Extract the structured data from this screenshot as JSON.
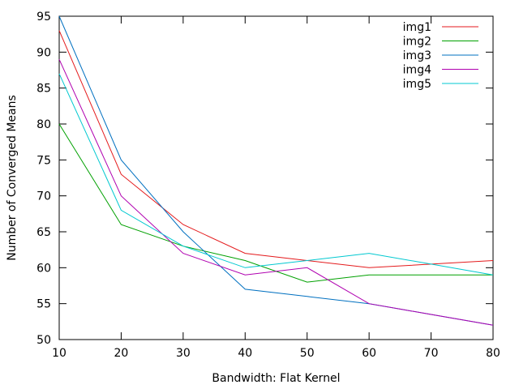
{
  "chart_data": {
    "type": "line",
    "title": "",
    "xlabel": "Bandwidth: Flat Kernel",
    "ylabel": "Number of Converged Means",
    "xlim": [
      10,
      80
    ],
    "ylim": [
      50,
      95
    ],
    "xticks": [
      10,
      20,
      30,
      40,
      50,
      60,
      70,
      80
    ],
    "yticks": [
      50,
      55,
      60,
      65,
      70,
      75,
      80,
      85,
      90,
      95
    ],
    "grid": false,
    "legend_position": "top-right",
    "x": [
      10,
      20,
      30,
      40,
      50,
      60,
      70,
      80
    ],
    "series": [
      {
        "name": "img1",
        "color": "#e41a1c",
        "values": [
          93,
          73,
          66,
          62,
          61,
          60,
          60.5,
          61
        ]
      },
      {
        "name": "img2",
        "color": "#00a000",
        "values": [
          80,
          66,
          63,
          61,
          58,
          59,
          59,
          59
        ]
      },
      {
        "name": "img3",
        "color": "#0070c0",
        "values": [
          95,
          75,
          65,
          57,
          56,
          55,
          53.5,
          52
        ]
      },
      {
        "name": "img4",
        "color": "#b000b0",
        "values": [
          89,
          70,
          62,
          59,
          60,
          55,
          53.5,
          52
        ]
      },
      {
        "name": "img5",
        "color": "#00c8d0",
        "values": [
          87,
          68,
          63,
          60,
          61,
          62,
          60.5,
          59
        ]
      }
    ]
  }
}
